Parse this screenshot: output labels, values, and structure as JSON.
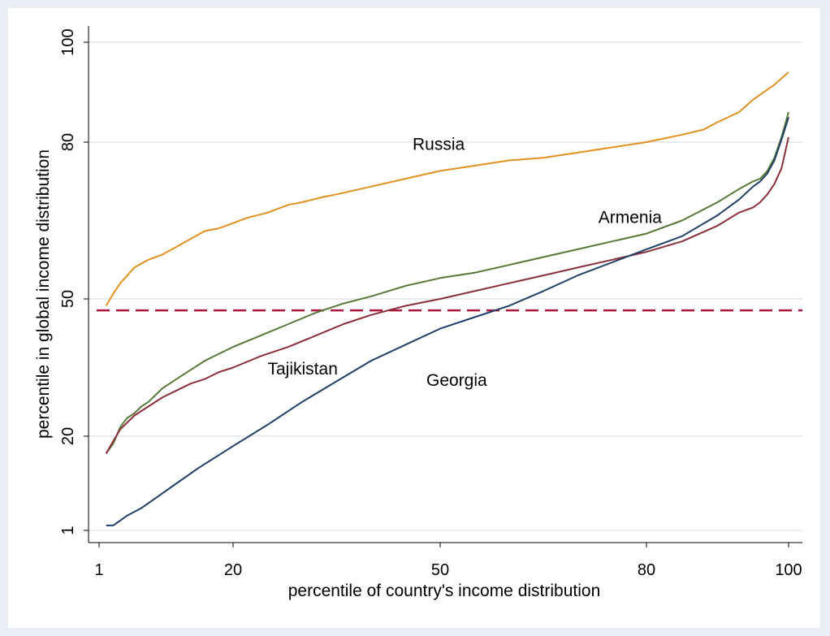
{
  "chart_data": {
    "type": "line",
    "title": "",
    "xlabel": "percentile of country's income distribution",
    "ylabel": "percentile in global income distribution",
    "xlim": [
      1,
      100
    ],
    "ylim": [
      1,
      100
    ],
    "x_ticks": [
      {
        "value": 1,
        "label": "1"
      },
      {
        "value": 20,
        "label": "20"
      },
      {
        "value": 50,
        "label": "50"
      },
      {
        "value": 80,
        "label": "80"
      },
      {
        "value": 100,
        "label": "100"
      }
    ],
    "y_ticks": [
      {
        "value": 1,
        "label": "1"
      },
      {
        "value": 20,
        "label": "20"
      },
      {
        "value": 50,
        "label": "50"
      },
      {
        "value": 80,
        "label": "80"
      },
      {
        "value": 100,
        "label": "100"
      }
    ],
    "grid": "horizontal",
    "reference_line": {
      "y": 47.5,
      "style": "dashed",
      "color": "#b0163a"
    },
    "series": [
      {
        "name": "Russia",
        "color": "#e3901f",
        "label_at": [
          46,
          78.5
        ],
        "x": [
          2,
          3,
          4,
          6,
          8,
          10,
          12,
          14,
          16,
          18,
          20,
          22,
          25,
          28,
          30,
          33,
          35,
          40,
          45,
          50,
          55,
          60,
          65,
          70,
          75,
          80,
          85,
          88,
          90,
          93,
          95,
          98,
          100
        ],
        "y": [
          48.5,
          51,
          53,
          56,
          57.5,
          58.5,
          60,
          61.5,
          63,
          63.5,
          64.5,
          65.5,
          66.5,
          68,
          68.5,
          69.5,
          70,
          71.5,
          73,
          74.5,
          75.5,
          76.5,
          77,
          78,
          79,
          80,
          81.5,
          82.5,
          84,
          86,
          88.5,
          91.5,
          94
        ]
      },
      {
        "name": "Armenia",
        "color": "#557a37",
        "label_at": [
          73,
          64.5
        ],
        "x": [
          2,
          3,
          4,
          5,
          6,
          7,
          8,
          10,
          12,
          14,
          16,
          18,
          20,
          24,
          28,
          32,
          36,
          40,
          45,
          50,
          55,
          60,
          65,
          70,
          75,
          80,
          85,
          90,
          93,
          95,
          96,
          97,
          98,
          99,
          100
        ],
        "y": [
          16.5,
          18.5,
          22,
          24,
          25,
          26.5,
          27.5,
          30.5,
          32.5,
          34.5,
          36.5,
          38,
          39.5,
          42,
          44.5,
          47,
          49,
          50.5,
          52.5,
          54,
          55,
          56.5,
          58,
          59.5,
          61,
          62.5,
          65,
          68.5,
          71,
          72.5,
          73,
          74.5,
          77,
          81,
          86
        ]
      },
      {
        "name": "Tajikistan",
        "color": "#8b2f3a",
        "label_at": [
          25,
          33.5
        ],
        "x": [
          2,
          3,
          4,
          5,
          6,
          7,
          8,
          10,
          12,
          14,
          16,
          18,
          20,
          24,
          28,
          32,
          36,
          40,
          45,
          50,
          55,
          60,
          65,
          70,
          75,
          80,
          85,
          90,
          93,
          95,
          96,
          97,
          98,
          99,
          100
        ],
        "y": [
          16.5,
          19,
          21.5,
          23,
          24.5,
          25.5,
          26.5,
          28.5,
          30,
          31.5,
          32.5,
          34,
          35,
          37.5,
          39.5,
          42,
          44.5,
          46.5,
          48.5,
          50,
          51.5,
          53,
          54.5,
          56,
          57.5,
          59,
          61,
          64,
          66.5,
          67.5,
          68.5,
          70,
          72,
          75,
          81
        ]
      },
      {
        "name": "Georgia",
        "color": "#1f3f66",
        "label_at": [
          48,
          31
        ],
        "x": [
          2,
          3,
          4,
          5,
          7,
          9,
          12,
          15,
          20,
          25,
          30,
          35,
          40,
          45,
          50,
          55,
          60,
          65,
          70,
          75,
          80,
          85,
          90,
          93,
          95,
          96,
          97,
          98,
          99,
          100
        ],
        "y": [
          2,
          2,
          3,
          4,
          5.5,
          7.5,
          10.5,
          13.5,
          18,
          22.5,
          27.5,
          32,
          36.5,
          40,
          43.5,
          46,
          48.5,
          51.5,
          54.5,
          57,
          59.5,
          62,
          66,
          69,
          71.5,
          72.5,
          74,
          76.5,
          80.5,
          85
        ]
      }
    ]
  }
}
